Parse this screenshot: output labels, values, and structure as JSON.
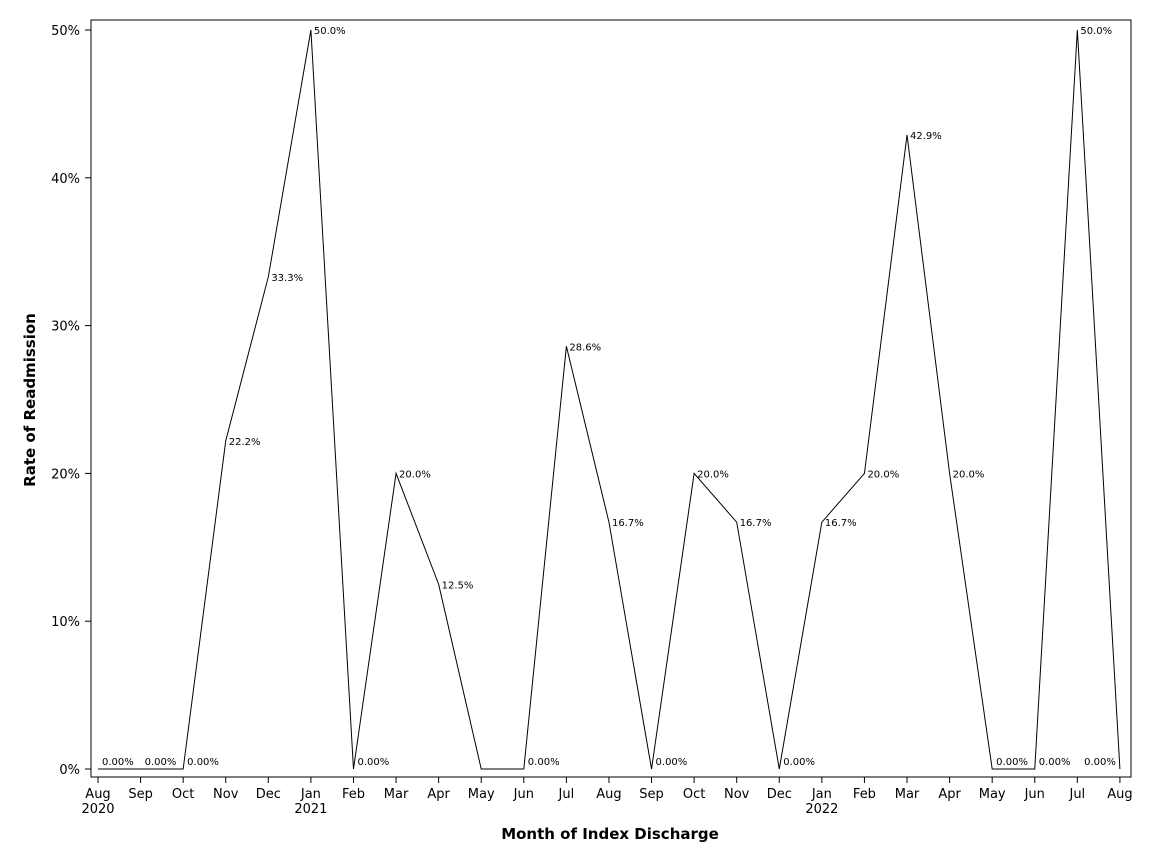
{
  "chart_data": {
    "type": "line",
    "title": "",
    "xlabel": "Month of Index Discharge",
    "ylabel": "Rate of Readmission",
    "ylim": [
      0,
      50
    ],
    "y_ticks": [
      "0%",
      "10%",
      "20%",
      "30%",
      "40%",
      "50%"
    ],
    "grid": false,
    "legend": "none",
    "line_color": "#000000",
    "x": [
      "2020-08",
      "2020-09",
      "2020-10",
      "2020-11",
      "2020-12",
      "2021-01",
      "2021-02",
      "2021-03",
      "2021-04",
      "2021-05",
      "2021-06",
      "2021-07",
      "2021-08",
      "2021-09",
      "2021-10",
      "2021-11",
      "2021-12",
      "2022-01",
      "2022-02",
      "2022-03",
      "2022-04",
      "2022-05",
      "2022-06",
      "2022-07",
      "2022-08"
    ],
    "x_tick_labels": [
      "Aug",
      "Sep",
      "Oct",
      "Nov",
      "Dec",
      "Jan",
      "Feb",
      "Mar",
      "Apr",
      "May",
      "Jun",
      "Jul",
      "Aug",
      "Sep",
      "Oct",
      "Nov",
      "Dec",
      "Jan",
      "Feb",
      "Mar",
      "Apr",
      "May",
      "Jun",
      "Jul",
      "Aug"
    ],
    "x_year_labels": [
      {
        "month": "2020-08",
        "label": "2020"
      },
      {
        "month": "2021-01",
        "label": "2021"
      },
      {
        "month": "2022-01",
        "label": "2022"
      }
    ],
    "series": [
      {
        "values": [
          0,
          0,
          0,
          22.2,
          33.3,
          50.0,
          0,
          20.0,
          12.5,
          0,
          0,
          28.6,
          16.7,
          0,
          20.0,
          16.7,
          0,
          16.7,
          20.0,
          42.9,
          20.0,
          0,
          0,
          50.0,
          0
        ],
        "labels": [
          "0.00%",
          "0.00%",
          "0.00%",
          "22.2%",
          "33.3%",
          "50.0%",
          "0.00%",
          "20.0%",
          "12.5%",
          null,
          "0.00%",
          "28.6%",
          "16.7%",
          "0.00%",
          "20.0%",
          "16.7%",
          "0.00%",
          "16.7%",
          "20.0%",
          "42.9%",
          "20.0%",
          "0.00%",
          "0.00%",
          "50.0%",
          "0.00%"
        ]
      }
    ]
  }
}
